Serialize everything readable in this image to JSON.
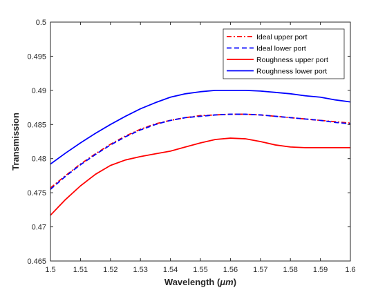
{
  "chart_data": {
    "type": "line",
    "title": "",
    "xlabel": "Wavelength (",
    "xlabel_unit": "μm",
    "xlabel_suffix": ")",
    "ylabel": "Transmission",
    "xlim": [
      1.5,
      1.6
    ],
    "ylim": [
      0.465,
      0.5
    ],
    "xticks": [
      1.5,
      1.51,
      1.52,
      1.53,
      1.54,
      1.55,
      1.56,
      1.57,
      1.58,
      1.59,
      1.6
    ],
    "xtick_labels": [
      "1.5",
      "1.51",
      "1.52",
      "1.53",
      "1.54",
      "1.55",
      "1.56",
      "1.57",
      "1.58",
      "1.59",
      "1.6"
    ],
    "yticks": [
      0.465,
      0.47,
      0.475,
      0.48,
      0.485,
      0.49,
      0.495,
      0.5
    ],
    "ytick_labels": [
      "0.465",
      "0.47",
      "0.475",
      "0.48",
      "0.485",
      "0.49",
      "0.495",
      "0.5"
    ],
    "grid": false,
    "legend_position": "top-right",
    "x": [
      1.5,
      1.505,
      1.51,
      1.515,
      1.52,
      1.525,
      1.53,
      1.535,
      1.54,
      1.545,
      1.55,
      1.555,
      1.56,
      1.565,
      1.57,
      1.575,
      1.58,
      1.585,
      1.59,
      1.595,
      1.6
    ],
    "series": [
      {
        "name": "Ideal upper port",
        "color": "#ff0000",
        "dash": "dashdot",
        "values": [
          0.4757,
          0.4775,
          0.4792,
          0.4807,
          0.4821,
          0.4833,
          0.4843,
          0.4851,
          0.4856,
          0.486,
          0.4863,
          0.4864,
          0.4865,
          0.4865,
          0.4864,
          0.4862,
          0.486,
          0.4858,
          0.4856,
          0.4854,
          0.4852
        ]
      },
      {
        "name": "Ideal lower port",
        "color": "#0000ff",
        "dash": "dashed",
        "values": [
          0.4755,
          0.4774,
          0.4791,
          0.4806,
          0.482,
          0.4832,
          0.4842,
          0.485,
          0.4856,
          0.486,
          0.4862,
          0.4864,
          0.4865,
          0.4865,
          0.4864,
          0.4862,
          0.486,
          0.4858,
          0.4856,
          0.4853,
          0.4851
        ]
      },
      {
        "name": "Roughness upper port",
        "color": "#ff0000",
        "dash": "solid",
        "values": [
          0.4717,
          0.474,
          0.476,
          0.4777,
          0.479,
          0.4798,
          0.4803,
          0.4807,
          0.4811,
          0.4817,
          0.4823,
          0.4828,
          0.483,
          0.4829,
          0.4825,
          0.482,
          0.4817,
          0.4816,
          0.4816,
          0.4816,
          0.4816
        ]
      },
      {
        "name": "Roughness lower port",
        "color": "#0000ff",
        "dash": "solid",
        "values": [
          0.4792,
          0.4808,
          0.4823,
          0.4837,
          0.485,
          0.4862,
          0.4873,
          0.4882,
          0.489,
          0.4895,
          0.4898,
          0.49,
          0.49,
          0.49,
          0.4899,
          0.4897,
          0.4895,
          0.4892,
          0.489,
          0.4886,
          0.4883
        ]
      }
    ]
  }
}
